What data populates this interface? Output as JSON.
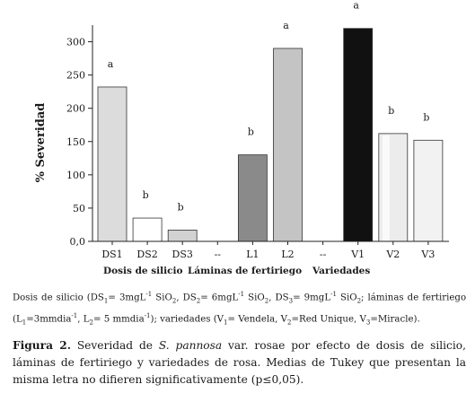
{
  "chart_data": {
    "type": "bar",
    "ylabel": "% Severidad",
    "ylim": [
      0,
      325
    ],
    "yticks": [
      0,
      50,
      100,
      150,
      200,
      250,
      300
    ],
    "ytick_labels": [
      "0,0",
      "50",
      "100",
      "150",
      "200",
      "250",
      "300"
    ],
    "categories": [
      "DS1",
      "DS2",
      "DS3",
      "--",
      "L1",
      "L2",
      "--",
      "V1",
      "V2",
      "V3"
    ],
    "values": [
      232,
      35,
      17,
      null,
      130,
      290,
      null,
      320,
      162,
      152
    ],
    "letters": [
      "a",
      "b",
      "b",
      "",
      "b",
      "a",
      "",
      "a",
      "b",
      "b"
    ],
    "bar_colors": [
      "#dcdcdc",
      "#ffffff",
      "#d2d2d2",
      null,
      "#8a8a8a",
      "#c4c4c4",
      null,
      "#111111",
      "#ececec",
      "#f2f2f2"
    ],
    "group_labels": [
      "Dosis de silicio",
      "Láminas de fertiriego",
      "Variedades"
    ],
    "grid": false
  },
  "note": {
    "p1": "Dosis de silicio (DS",
    "p1s": "1",
    "p2": "= 3mgL",
    "p2e": "-1",
    "p3": " SiO",
    "p3s": "2",
    "p4": ", DS",
    "p4s": "2",
    "p5": "= 6mgL",
    "p5e": "-1",
    "p6": " SiO",
    "p6s": "2",
    "p7": ", DS",
    "p7s": "3",
    "p8": "= 9mgL",
    "p8e": "-1",
    "p9": " SiO",
    "p9s": "2",
    "p10": "; láminas de fertiriego (L",
    "p10s": "1",
    "p11": "=3mmdia",
    "p11e": "-1",
    "p12": ", L",
    "p12s": "2",
    "p13": "= 5 mmdia",
    "p13e": "-1",
    "p14": "); variedades (V",
    "p14s": "1",
    "p15": "= Vendela, V",
    "p15s": "2",
    "p16": "=Red Unique, V",
    "p16s": "3",
    "p17": "=Miracle)."
  },
  "caption": {
    "lead": "Figura 2.",
    "t1": " Severidad de ",
    "species": "S. pannosa",
    "t2": " var. rosae por efecto de dosis de silicio, láminas de fertiriego y variedades de rosa. Medias de Tukey que presentan la misma letra no difieren significativamente (p≤0,05)."
  }
}
